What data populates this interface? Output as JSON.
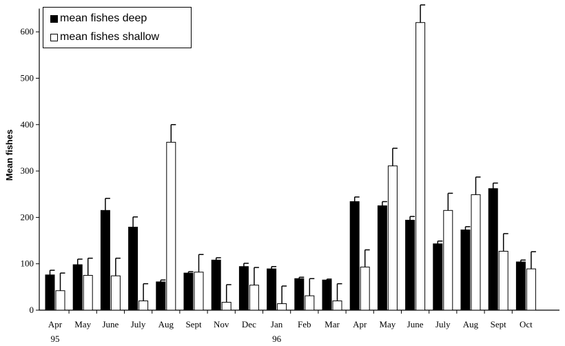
{
  "chart_data": {
    "type": "bar",
    "title": "",
    "ylabel": "Mean fishes",
    "xlabel": "",
    "ylim": [
      0,
      650
    ],
    "yticks": [
      0,
      100,
      200,
      300,
      400,
      500,
      600
    ],
    "categories": [
      "Apr",
      "May",
      "June",
      "July",
      "Aug",
      "Sept",
      "Nov",
      "Dec",
      "Jan",
      "Feb",
      "Mar",
      "Apr",
      "May",
      "June",
      "July",
      "Aug",
      "Sept",
      "Oct"
    ],
    "year_labels": [
      {
        "category_index": 0,
        "text": "95"
      },
      {
        "category_index": 8,
        "text": "96"
      }
    ],
    "grid": false,
    "legend_position": "top-left",
    "series": [
      {
        "name": "mean fishes deep",
        "color": "#000000",
        "values": [
          76,
          98,
          215,
          179,
          61,
          80,
          108,
          94,
          89,
          68,
          65,
          234,
          225,
          194,
          143,
          173,
          262,
          104
        ],
        "errors": [
          10,
          12,
          26,
          22,
          4,
          3,
          5,
          7,
          5,
          3,
          2,
          10,
          9,
          8,
          6,
          7,
          12,
          4
        ]
      },
      {
        "name": "mean fishes shallow",
        "color": "#ffffff",
        "values": [
          42,
          75,
          74,
          20,
          362,
          82,
          17,
          54,
          14,
          31,
          20,
          93,
          311,
          620,
          215,
          249,
          127,
          89
        ],
        "errors": [
          38,
          37,
          38,
          37,
          38,
          38,
          38,
          38,
          38,
          37,
          37,
          37,
          38,
          38,
          37,
          38,
          38,
          37
        ]
      }
    ]
  }
}
